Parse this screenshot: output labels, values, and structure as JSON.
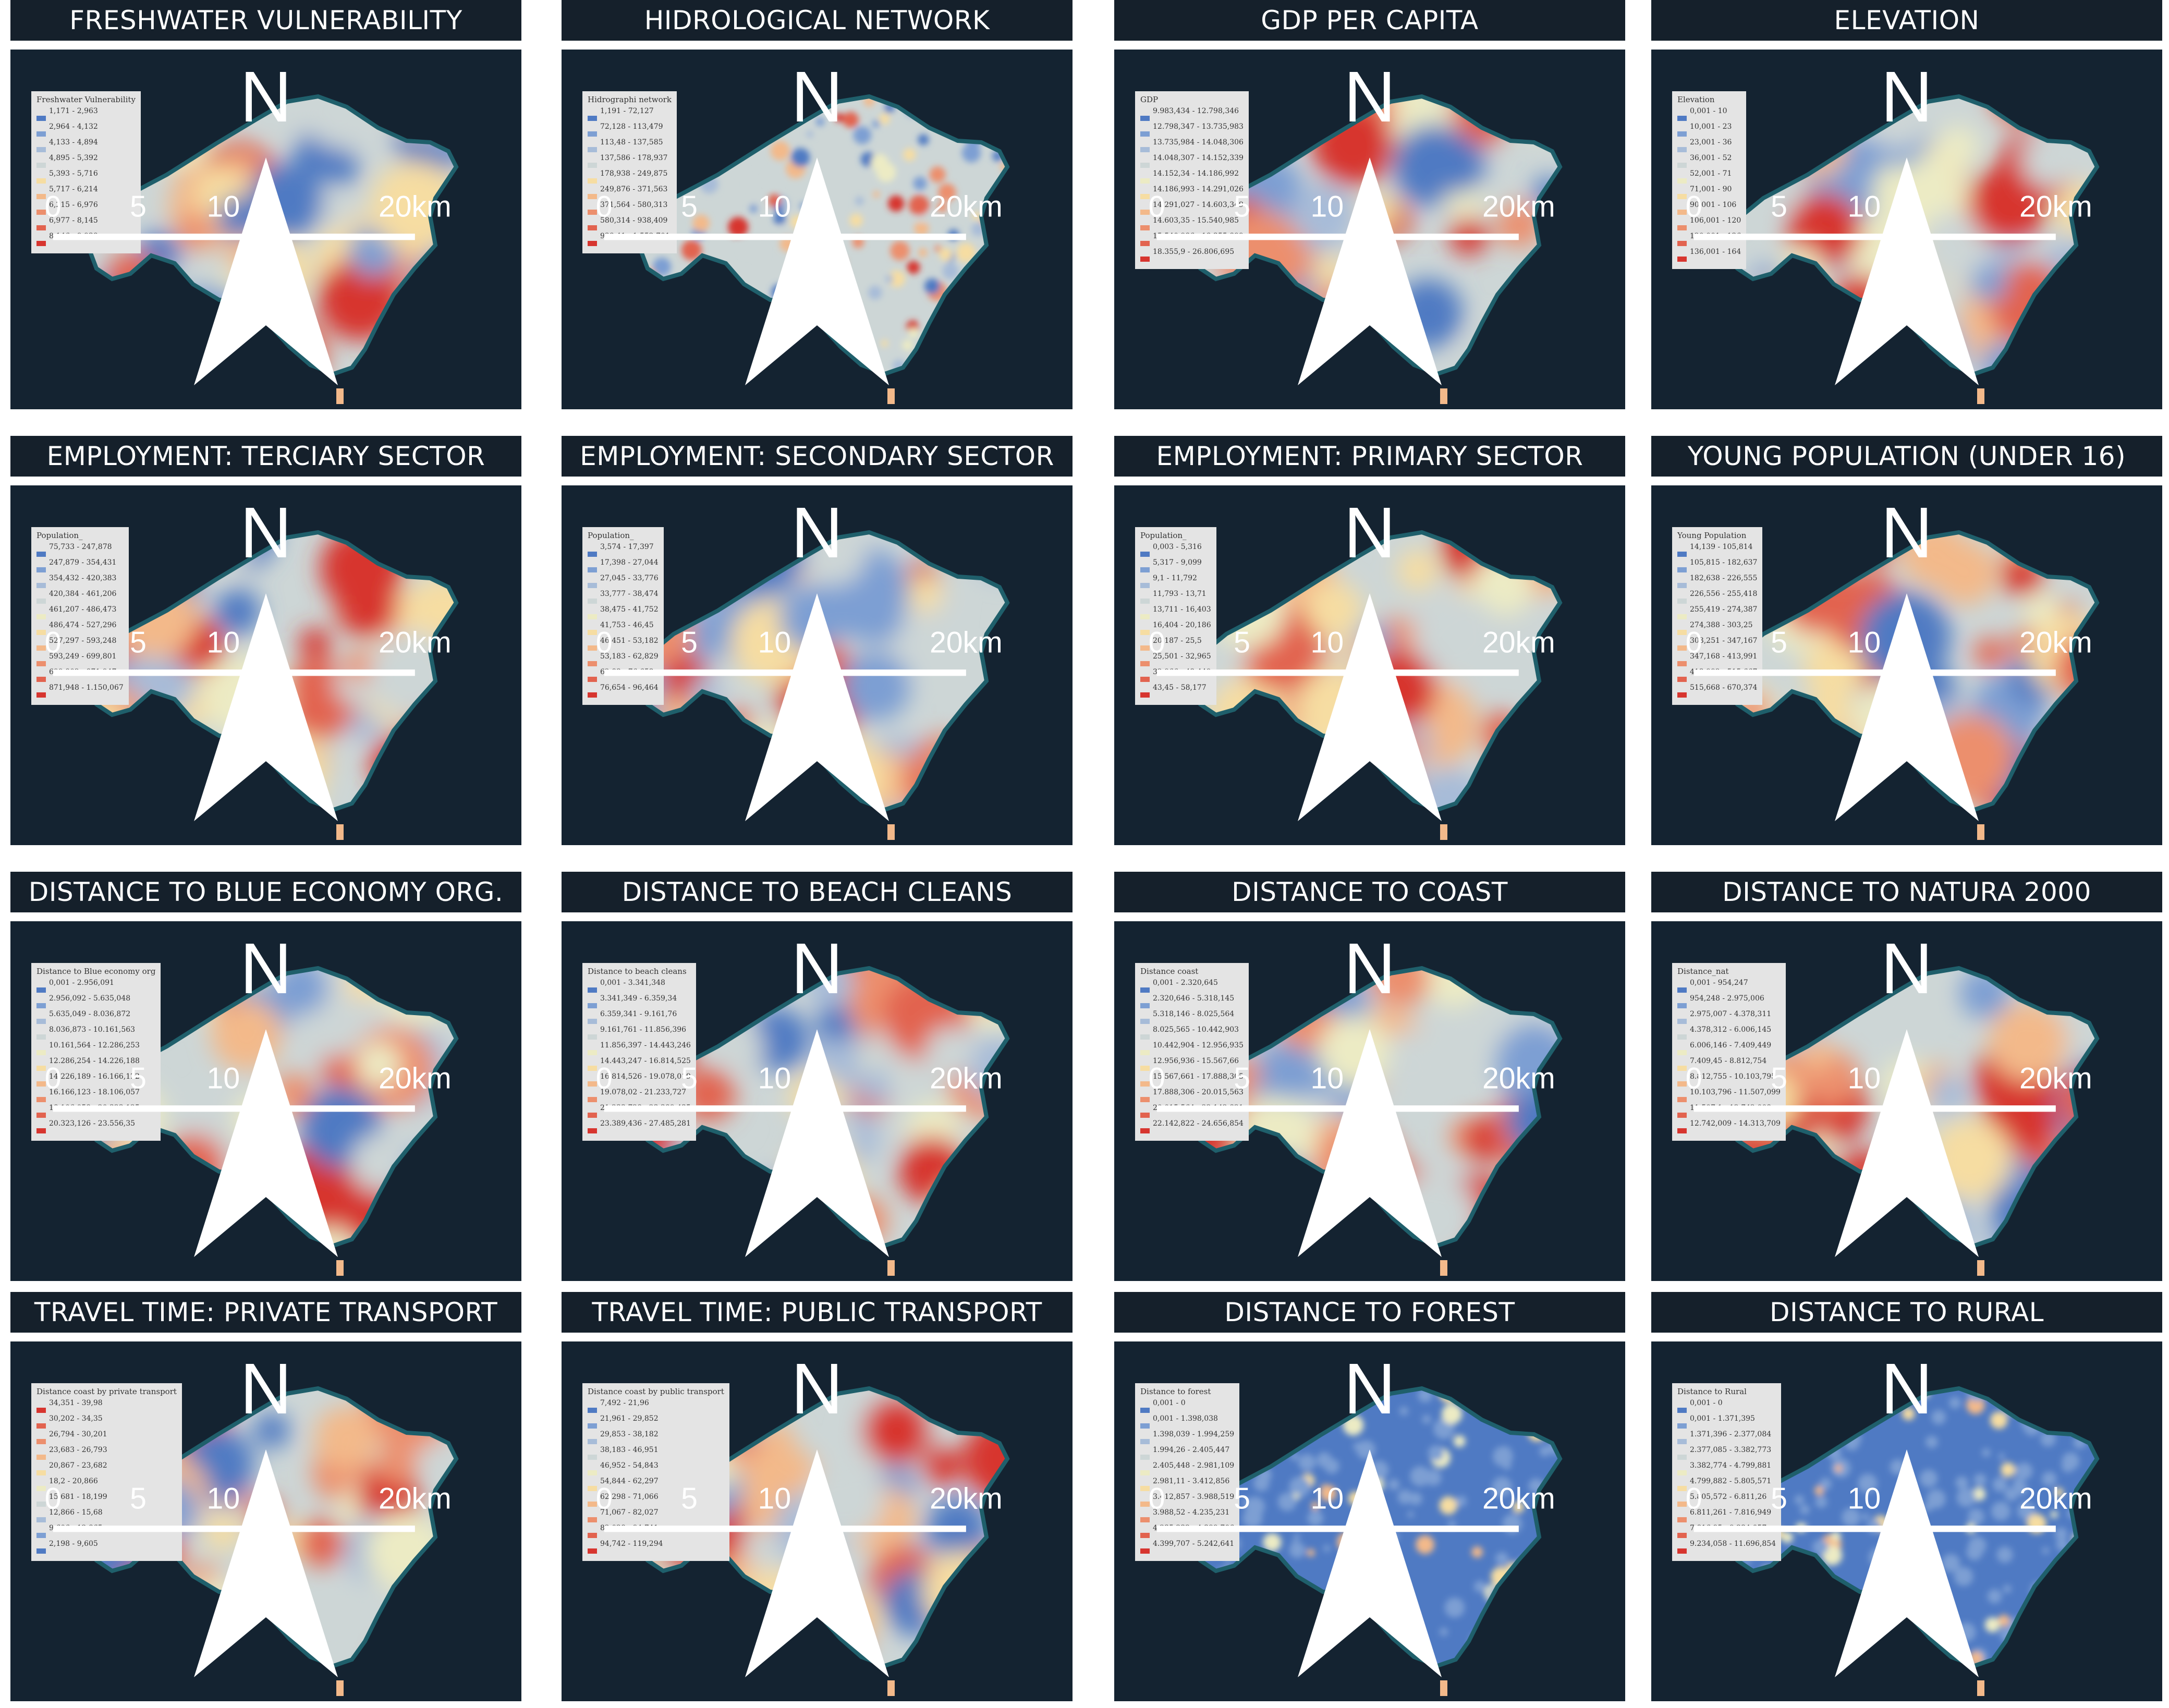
{
  "panels": [
    {
      "title": "FRESHWATER VULNERABILITY",
      "legend_title": "Freshwater Vulnerability",
      "entries": [
        "1,171 - 2,963",
        "2,964 - 4,132",
        "4,133 - 4,894",
        "4,895 - 5,392",
        "5,393 - 5,716",
        "5,717 - 6,214",
        "6,215 - 6,976",
        "6,977 - 8,145",
        "8,146 - 9,938"
      ]
    },
    {
      "title": "HIDROLOGICAL NETWORK",
      "legend_title": "Hidrographi network",
      "entries": [
        "1,191 - 72,127",
        "72,128 - 113,479",
        "113,48 - 137,585",
        "137,586 - 178,937",
        "178,938 - 249,875",
        "249,876 - 371,563",
        "371,564 - 580,313",
        "580,314 - 938,409",
        "938,41 - 1.552,701"
      ]
    },
    {
      "title": "GDP PER CAPITA",
      "legend_title": "GDP",
      "entries": [
        "9.983,434 - 12.798,346",
        "12.798,347 - 13.735,983",
        "13.735,984 - 14.048,306",
        "14.048,307 - 14.152,339",
        "14.152,34 - 14.186,992",
        "14.186,993 - 14.291,026",
        "14.291,027 - 14.603,349",
        "14.603,35 - 15.540,985",
        "15.540,986 - 18.355,899",
        "18.355,9 - 26.806,695"
      ]
    },
    {
      "title": "ELEVATION",
      "legend_title": "Elevation",
      "entries": [
        "0,001 - 10",
        "10,001 - 23",
        "23,001 - 36",
        "36,001 - 52",
        "52,001 - 71",
        "71,001 - 90",
        "90,001 - 106",
        "106,001 - 120",
        "120,001 - 136",
        "136,001 - 164"
      ]
    },
    {
      "title": "EMPLOYMENT: TERCIARY SECTOR",
      "legend_title": "Population_",
      "entries": [
        "75,733 - 247,878",
        "247,879 - 354,431",
        "354,432 - 420,383",
        "420,384 - 461,206",
        "461,207 - 486,473",
        "486,474 - 527,296",
        "527,297 - 593,248",
        "593,249 - 699,801",
        "699,802 - 871,947",
        "871,948 - 1.150,067"
      ]
    },
    {
      "title": "EMPLOYMENT: SECONDARY SECTOR",
      "legend_title": "Population_",
      "entries": [
        "3,574 - 17,397",
        "17,398 - 27,044",
        "27,045 - 33,776",
        "33,777 - 38,474",
        "38,475 - 41,752",
        "41,753 - 46,45",
        "46,451 - 53,182",
        "53,183 - 62,829",
        "62,83 - 76,653",
        "76,654 - 96,464"
      ]
    },
    {
      "title": "EMPLOYMENT: PRIMARY SECTOR",
      "legend_title": "Population_",
      "entries": [
        "0,003 - 5,316",
        "5,317 - 9,099",
        "9,1 - 11,792",
        "11,793 - 13,71",
        "13,711 - 16,403",
        "16,404 - 20,186",
        "20,187 - 25,5",
        "25,501 - 32,965",
        "32,966 - 43,449",
        "43,45 - 58,177"
      ]
    },
    {
      "title": "YOUNG POPULATION (UNDER 16)",
      "legend_title": "Young Population",
      "entries": [
        "14,139 - 105,814",
        "105,815 - 182,637",
        "182,638 - 226,555",
        "226,556 - 255,418",
        "255,419 - 274,387",
        "274,388 - 303,25",
        "303,251 - 347,167",
        "347,168 - 413,991",
        "413,992 - 515,667",
        "515,668 - 670,374"
      ]
    },
    {
      "title": "DISTANCE  TO BLUE ECONOMY ORG.",
      "legend_title": "Distance to Blue economy org",
      "entries": [
        "0,001 - 2.956,091",
        "2.956,092 - 5.635,048",
        "5.635,049 - 8.036,872",
        "8.036,873 - 10.161,563",
        "10.161,564 - 12.286,253",
        "12.286,254 - 14.226,188",
        "14.226,189 - 16.166,122",
        "16.166,123 - 18.106,057",
        "18.106,058 - 20.323,125",
        "20.323,126 - 23.556,35"
      ]
    },
    {
      "title": "DISTANCE TO BEACH CLEANS",
      "legend_title": "Distance to beach cleans",
      "entries": [
        "0,001 - 3.341,348",
        "3.341,349 - 6.359,34",
        "6.359,341 - 9.161,76",
        "9.161,761 - 11.856,396",
        "11.856,397 - 14.443,246",
        "14.443,247 - 16.814,525",
        "16.814,526 - 19.078,019",
        "19.078,02 - 21.233,727",
        "21.233,728 - 23.389,435",
        "23.389,436 - 27.485,281"
      ]
    },
    {
      "title": "DISTANCE TO COAST",
      "legend_title": "Distance coast",
      "entries": [
        "0,001 - 2.320,645",
        "2.320,646 - 5.318,145",
        "5.318,146 - 8.025,564",
        "8.025,565 - 10.442,903",
        "10.442,904 - 12.956,935",
        "12.956,936 - 15.567,66",
        "15.567,661 - 17.888,305",
        "17.888,306 - 20.015,563",
        "20.015,564 - 22.142,821",
        "22.142,822 - 24.656,854"
      ]
    },
    {
      "title": "DISTANCE TO NATURA 2000",
      "legend_title": "Distance_nat",
      "entries": [
        "0,001 - 954,247",
        "954,248 - 2.975,006",
        "2.975,007 - 4.378,311",
        "4.378,312 - 6.006,145",
        "6.006,146 - 7.409,449",
        "7.409,45 - 8.812,754",
        "8.812,755 - 10.103,795",
        "10.103,796 - 11.507,099",
        "11.507,1 - 12.742,008",
        "12.742,009 - 14.313,709"
      ]
    },
    {
      "title": "TRAVEL TIME: PRIVATE TRANSPORT",
      "legend_title": "Distance coast by private transport",
      "entries": [
        "34,351 - 39,98",
        "30,202 - 34,35",
        "26,794 - 30,201",
        "23,683 - 26,793",
        "20,867 - 23,682",
        "18,2 - 20,866",
        "15,681 - 18,199",
        "12,866 - 15,68",
        "9,606 - 12,865",
        "2,198 - 9,605"
      ]
    },
    {
      "title": "TRAVEL TIME: PUBLIC TRANSPORT",
      "legend_title": "Distance coast by public transport",
      "entries": [
        "7,492 - 21,96",
        "21,961 - 29,852",
        "29,853 - 38,182",
        "38,183 - 46,951",
        "46,952 - 54,843",
        "54,844 - 62,297",
        "62,298 - 71,066",
        "71,067 - 82,027",
        "82,028 - 94,741",
        "94,742 - 119,294"
      ]
    },
    {
      "title": "DISTANCE TO  FOREST",
      "legend_title": "Distance to forest",
      "entries": [
        "0,001 - 0",
        "0,001 - 1.398,038",
        "1.398,039 - 1.994,259",
        "1.994,26 - 2.405,447",
        "2.405,448 - 2.981,109",
        "2.981,11 - 3.412,856",
        "3.412,857 - 3.988,519",
        "3.988,52 - 4.235,231",
        "4.235,232 - 4.399,706",
        "4.399,707 - 5.242,641"
      ]
    },
    {
      "title": "DISTANCE TO RURAL",
      "legend_title": "Distance to Rural",
      "entries": [
        "0,001 - 0",
        "0,001 - 1.371,395",
        "1.371,396 - 2.377,084",
        "2.377,085 - 3.382,773",
        "3.382,774 - 4.799,881",
        "4.799,882 - 5.805,571",
        "5.805,572 - 6.811,26",
        "6.811,261 - 7.816,949",
        "7.816,95 - 9.234,057",
        "9.234,058 - 11.696,854"
      ]
    }
  ],
  "scale": {
    "ticks": [
      "0",
      "5",
      "10",
      "20km"
    ]
  },
  "north_label": "N",
  "colors": {
    "title_bg": "#15202b",
    "map_bg": "#142331",
    "coast": "#1f5f6b",
    "legend_bg": "#e4e4e4",
    "palette": [
      "#4f7ac3",
      "#7d9fd3",
      "#a7bcd8",
      "#cdd6d6",
      "#ecebc4",
      "#f6dda2",
      "#f3b98a",
      "#ec8f6d",
      "#e2634f",
      "#d7352f"
    ]
  }
}
